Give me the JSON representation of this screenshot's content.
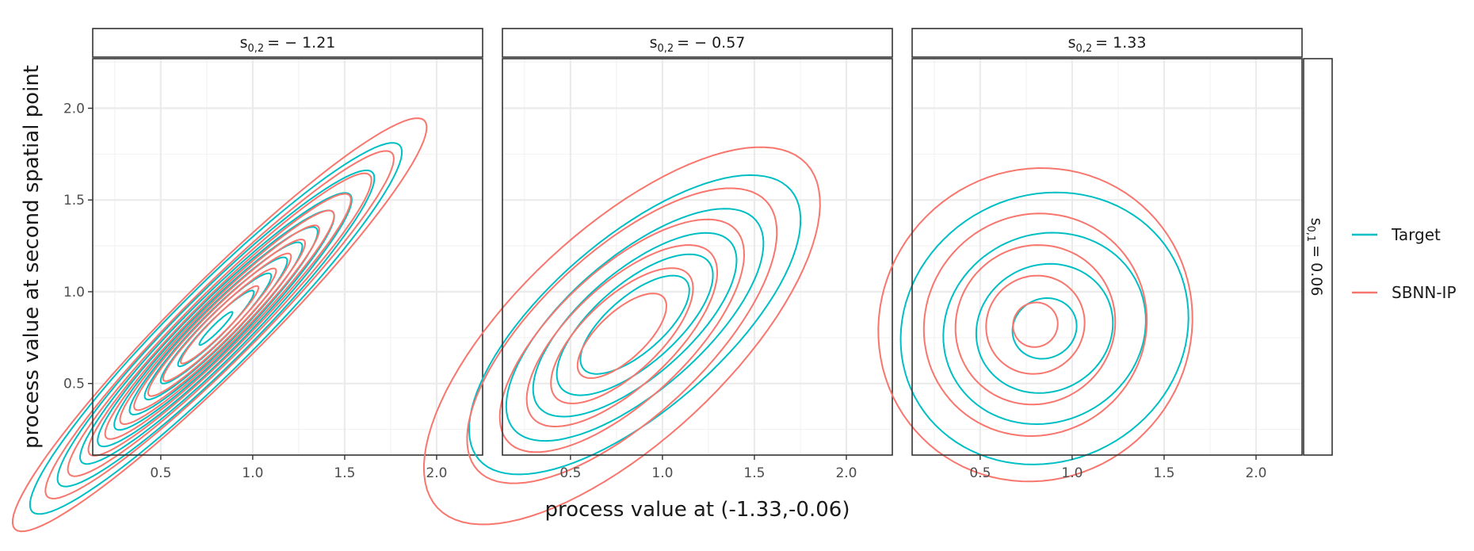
{
  "chart_data": {
    "type": "contour",
    "xlabel": "process value at (-1.33,-0.06)",
    "ylabel": "process value at second spatial point",
    "xlim": [
      0.13,
      2.25
    ],
    "ylim": [
      0.11,
      2.27
    ],
    "x_ticks": [
      0.5,
      1.0,
      1.5,
      2.0
    ],
    "x_tick_labels": [
      "0.5",
      "1.0",
      "1.5",
      "2.0"
    ],
    "y_ticks": [
      0.5,
      1.0,
      1.5,
      2.0
    ],
    "y_tick_labels": [
      "0.5",
      "1.0",
      "1.5",
      "2.0"
    ],
    "row_facet": {
      "label": "s",
      "sub": "0,1",
      "value": "= 0.06"
    },
    "legend": [
      {
        "name": "Target",
        "color": "#00bfc4"
      },
      {
        "name": "SBNN-IP",
        "color": "#f8766d"
      }
    ],
    "panels": [
      {
        "facet": {
          "label": "s",
          "sub": "0,2",
          "value": "= − 1.21"
        },
        "series": [
          {
            "name": "Target",
            "center": [
              0.8,
              0.8
            ],
            "rho": 0.95,
            "sd_x": 0.45,
            "sd_y": 0.45,
            "levels": [
              0.08,
              0.16,
              0.26,
              0.36,
              0.47,
              0.58,
              0.69,
              0.8,
              0.9,
              0.98
            ]
          },
          {
            "name": "SBNN-IP",
            "center": [
              0.82,
              0.82
            ],
            "rho": 0.955,
            "sd_x": 0.46,
            "sd_y": 0.46,
            "levels": [
              0.05,
              0.12,
              0.2,
              0.3,
              0.4,
              0.5,
              0.6,
              0.7,
              0.8,
              0.9
            ]
          }
        ]
      },
      {
        "facet": {
          "label": "s",
          "sub": "0,2",
          "value": "= − 0.57"
        },
        "series": [
          {
            "name": "Target",
            "center": [
              0.85,
              0.82
            ],
            "rho": 0.7,
            "sd_x": 0.42,
            "sd_y": 0.38,
            "levels": [
              0.1,
              0.25,
              0.42,
              0.6,
              0.78
            ]
          },
          {
            "name": "SBNN-IP",
            "center": [
              0.78,
              0.76
            ],
            "rho": 0.7,
            "sd_x": 0.44,
            "sd_y": 0.42,
            "levels": [
              0.05,
              0.16,
              0.32,
              0.5,
              0.68,
              0.86
            ]
          }
        ]
      },
      {
        "facet": {
          "label": "s",
          "sub": "0,2",
          "value": "= 1.33"
        },
        "series": [
          {
            "name": "Target",
            "center": [
              0.85,
              0.8
            ],
            "rho": 0.08,
            "sd_x": 0.38,
            "sd_y": 0.36,
            "levels": [
              0.12,
              0.35,
              0.62,
              0.9
            ]
          },
          {
            "name": "SBNN-IP",
            "center": [
              0.8,
              0.82
            ],
            "rho": 0.04,
            "sd_x": 0.38,
            "sd_y": 0.38,
            "levels": [
              0.08,
              0.28,
              0.52,
              0.78,
              0.95
            ]
          }
        ]
      }
    ]
  }
}
